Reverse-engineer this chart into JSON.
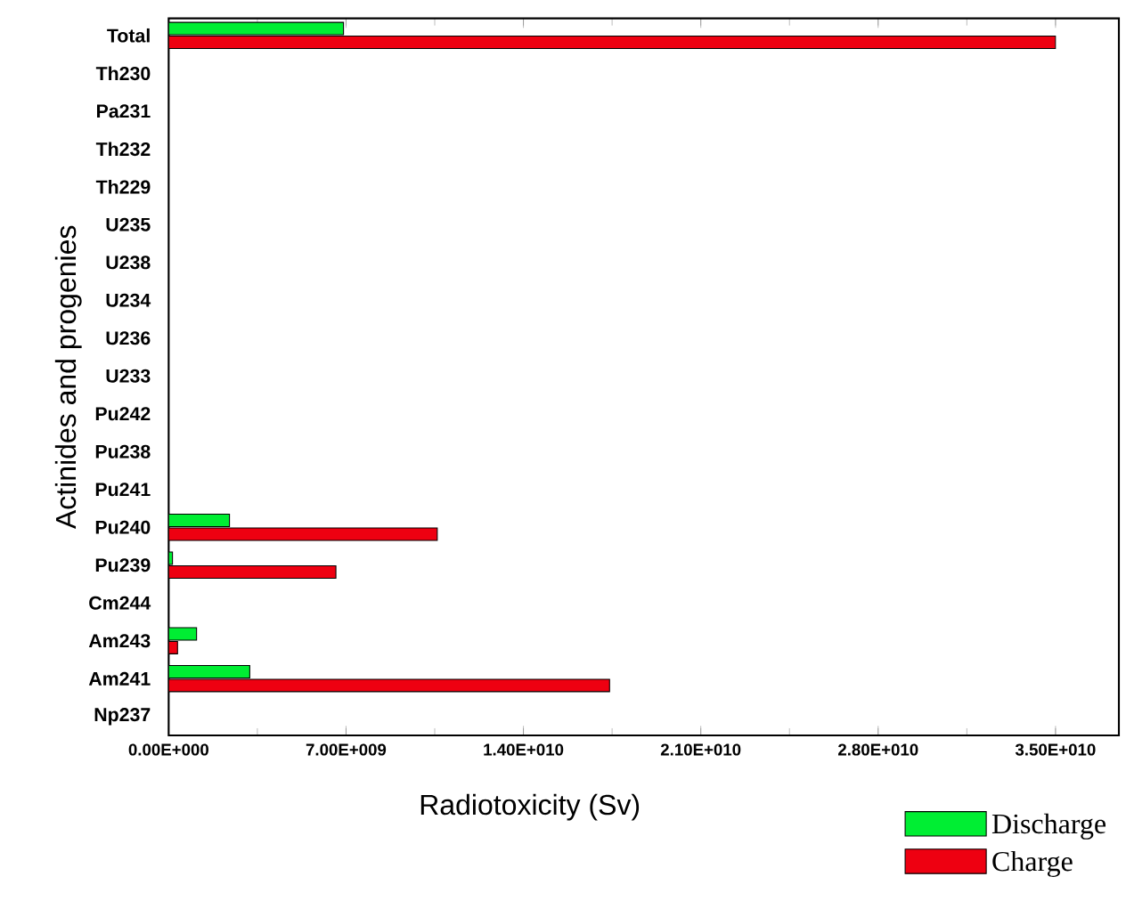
{
  "chart_data": {
    "type": "bar",
    "orientation": "horizontal",
    "xlabel": "Radiotoxicity (Sv)",
    "ylabel": "Actinides and progenies",
    "categories": [
      "Total",
      "Th230",
      "Pa231",
      "Th232",
      "Th229",
      "U235",
      "U238",
      "U234",
      "U236",
      "U233",
      "Pu242",
      "Pu238",
      "Pu241",
      "Pu240",
      "Pu239",
      "Cm244",
      "Am243",
      "Am241",
      "Np237"
    ],
    "series": [
      {
        "name": "Discharge",
        "color": "#00ee33",
        "values": [
          6900000000.0,
          0,
          0,
          0,
          0,
          0,
          0,
          0,
          0,
          0,
          0,
          0,
          0,
          2400000000.0,
          150000000.0,
          0,
          1100000000.0,
          3200000000.0,
          0
        ]
      },
      {
        "name": "Charge",
        "color": "#ee0011",
        "values": [
          35000000000.0,
          0,
          0,
          0,
          0,
          0,
          0,
          0,
          0,
          0,
          0,
          0,
          0,
          10600000000.0,
          6600000000.0,
          0,
          350000000.0,
          17400000000.0,
          0
        ]
      }
    ],
    "xlim": [
      0,
      37500000000.0
    ],
    "xticks": [
      {
        "value": 0,
        "label": "0.00E+000"
      },
      {
        "value": 7000000000.0,
        "label": "7.00E+009"
      },
      {
        "value": 14000000000.0,
        "label": "1.40E+010"
      },
      {
        "value": 21000000000.0,
        "label": "2.10E+010"
      },
      {
        "value": 28000000000.0,
        "label": "2.80E+010"
      },
      {
        "value": 35000000000.0,
        "label": "3.50E+010"
      }
    ],
    "legend": "bottom right",
    "grid": false
  }
}
